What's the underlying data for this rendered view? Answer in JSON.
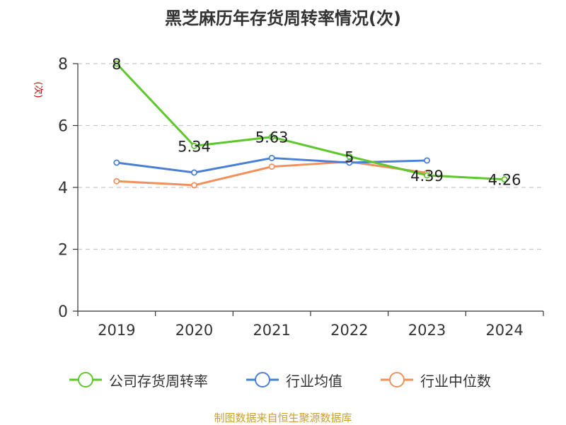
{
  "chart_data": {
    "type": "line",
    "title": "黑芝麻历年存货周转率情况(次)",
    "ylabel": "(次)",
    "xlabel": "",
    "categories": [
      "2019",
      "2020",
      "2021",
      "2022",
      "2023",
      "2024"
    ],
    "ylim": [
      0,
      8
    ],
    "yticks": [
      0,
      2,
      4,
      6,
      8
    ],
    "grid": "horizontal-dashed",
    "legend_position": "bottom",
    "series": [
      {
        "name": "公司存货周转率",
        "color": "#5ec72c",
        "values": [
          8,
          5.34,
          5.63,
          5,
          4.39,
          4.26
        ],
        "labels": [
          "8",
          "5.34",
          "5.63",
          "5",
          "4.39",
          "4.26"
        ]
      },
      {
        "name": "行业均值",
        "color": "#4a7fd6",
        "values": [
          4.8,
          4.48,
          4.95,
          4.8,
          4.87,
          null
        ]
      },
      {
        "name": "行业中位数",
        "color": "#f2905c",
        "values": [
          4.2,
          4.07,
          4.67,
          4.83,
          4.47,
          null
        ]
      }
    ]
  },
  "source": "制图数据来自恒生聚源数据库"
}
